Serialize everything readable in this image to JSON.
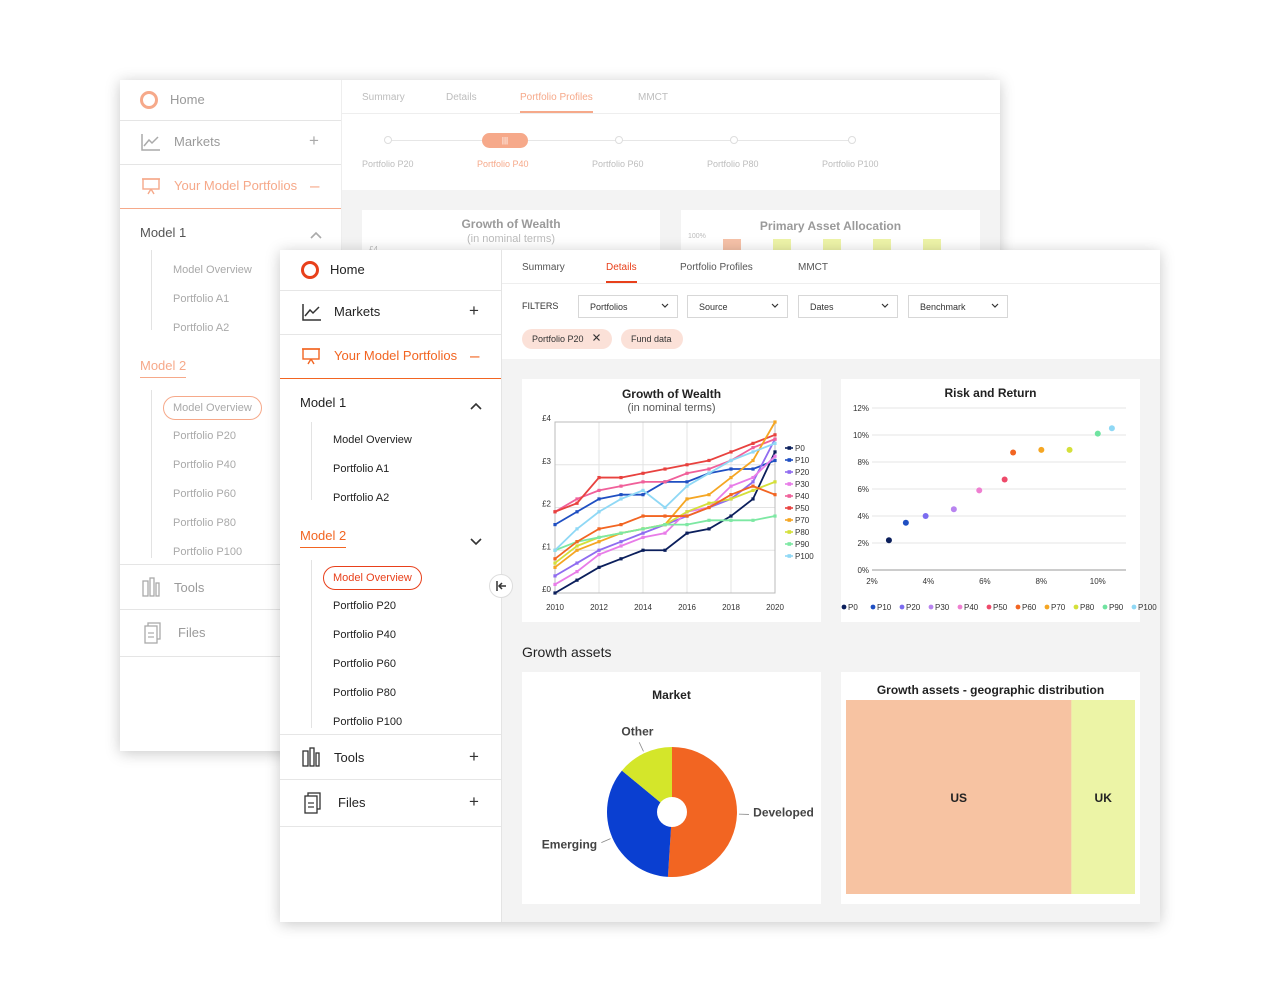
{
  "back": {
    "sidebar": {
      "home": "Home",
      "markets": "Markets",
      "your_model_portfolios": "Your Model Portfolios",
      "model1": "Model 1",
      "model1_items": [
        "Model Overview",
        "Portfolio A1",
        "Portfolio A2"
      ],
      "model2": "Model 2",
      "model2_items": [
        "Model Overview",
        "Portfolio P20",
        "Portfolio P40",
        "Portfolio P60",
        "Portfolio P80",
        "Portfolio P100"
      ],
      "tools": "Tools",
      "files": "Files"
    },
    "tabs": [
      "Summary",
      "Details",
      "Portfolio Profiles",
      "MMCT"
    ],
    "active_tab": "Portfolio Profiles",
    "steps": [
      "Portfolio P20",
      "Portfolio P40",
      "Portfolio P60",
      "Portfolio P80",
      "Portfolio P100"
    ],
    "active_step": "Portfolio P40",
    "card1_title": "Growth of Wealth",
    "card1_subtitle": "(in nominal terms)",
    "card1_partial_tick": "£4",
    "card2_title": "Primary Asset Allocation",
    "card2_partial_tick": "100%"
  },
  "front": {
    "sidebar": {
      "home": "Home",
      "markets": "Markets",
      "your_model_portfolios": "Your Model Portfolios",
      "model1": "Model 1",
      "model1_items": [
        "Model Overview",
        "Portfolio A1",
        "Portfolio A2"
      ],
      "model2": "Model 2",
      "model2_items": [
        "Model Overview",
        "Portfolio P20",
        "Portfolio P40",
        "Portfolio P60",
        "Portfolio P80",
        "Portfolio P100"
      ],
      "tools": "Tools",
      "files": "Files"
    },
    "tabs": [
      "Summary",
      "Details",
      "Portfolio Profiles",
      "MMCT"
    ],
    "active_tab": "Details",
    "filters_label": "FILTERS",
    "filters": [
      "Portfolios",
      "Source",
      "Dates",
      "Benchmark"
    ],
    "chips": [
      "Portfolio P20",
      "Fund data"
    ],
    "section_heading": "Growth assets"
  },
  "colors": {
    "accent": "#f26522",
    "accent_light": "#f6a98a",
    "chip_bg": "#fbe1d8"
  },
  "chart_data": [
    {
      "type": "line",
      "title": "Growth of Wealth",
      "subtitle": "(in nominal terms)",
      "x": [
        2010,
        2011,
        2012,
        2013,
        2014,
        2015,
        2016,
        2017,
        2018,
        2019,
        2020
      ],
      "xticks": [
        "2010",
        "2012",
        "2014",
        "2016",
        "2018",
        "2020"
      ],
      "yticks": [
        "£0",
        "£1",
        "£2",
        "£3",
        "£4"
      ],
      "ylim": [
        0,
        4
      ],
      "legend_position": "right",
      "series": [
        {
          "name": "P0",
          "color": "#0b1f5c",
          "values": [
            0.0,
            0.3,
            0.6,
            0.8,
            1.0,
            1.0,
            1.4,
            1.5,
            1.8,
            2.2,
            3.3
          ]
        },
        {
          "name": "P10",
          "color": "#1f4fc2",
          "values": [
            1.6,
            1.9,
            2.2,
            2.3,
            2.3,
            2.6,
            2.6,
            2.8,
            2.9,
            2.9,
            3.1
          ]
        },
        {
          "name": "P20",
          "color": "#8f6cf0",
          "values": [
            0.4,
            0.7,
            1.0,
            1.2,
            1.4,
            1.6,
            1.8,
            2.0,
            2.2,
            2.6,
            3.6
          ]
        },
        {
          "name": "P30",
          "color": "#e87ce8",
          "values": [
            0.2,
            0.5,
            0.9,
            1.1,
            1.3,
            1.4,
            1.9,
            2.0,
            2.5,
            2.7,
            3.2
          ]
        },
        {
          "name": "P40",
          "color": "#f0609a",
          "values": [
            1.9,
            2.2,
            2.4,
            2.5,
            2.6,
            2.6,
            2.8,
            2.9,
            3.1,
            3.4,
            3.6
          ]
        },
        {
          "name": "P50",
          "color": "#e8423f",
          "values": [
            1.9,
            2.1,
            2.7,
            2.7,
            2.8,
            2.9,
            3.0,
            3.1,
            3.3,
            3.5,
            3.7
          ]
        },
        {
          "name": "P70",
          "color": "#f5a623",
          "values": [
            0.6,
            1.0,
            1.2,
            1.4,
            1.5,
            1.6,
            2.2,
            2.3,
            2.7,
            3.1,
            4.0
          ]
        },
        {
          "name": "P80",
          "color": "#d4e03a",
          "values": [
            0.7,
            1.1,
            1.3,
            1.4,
            1.5,
            1.6,
            1.9,
            2.1,
            2.2,
            2.4,
            2.6
          ]
        },
        {
          "name": "P90",
          "color": "#7de8a3",
          "values": [
            1.0,
            1.2,
            1.3,
            1.4,
            1.5,
            1.6,
            1.6,
            1.7,
            1.7,
            1.7,
            1.8
          ]
        },
        {
          "name": "P100",
          "color": "#8fd8f5",
          "values": [
            1.0,
            1.5,
            1.9,
            2.2,
            2.4,
            2.0,
            2.5,
            2.8,
            3.1,
            3.3,
            3.5
          ]
        },
        {
          "name": "",
          "color": "#f26522",
          "values": [
            0.8,
            1.2,
            1.5,
            1.6,
            1.8,
            1.8,
            1.8,
            2.0,
            2.3,
            2.5,
            2.3
          ]
        }
      ]
    },
    {
      "type": "scatter",
      "title": "Risk and Return",
      "xticks": [
        "2%",
        "4%",
        "6%",
        "8%",
        "10%"
      ],
      "yticks": [
        "0%",
        "2%",
        "4%",
        "6%",
        "8%",
        "10%",
        "12%"
      ],
      "xlim": [
        2,
        11
      ],
      "ylim": [
        0,
        12
      ],
      "grid": "horizontal",
      "legend_position": "bottom",
      "legend": [
        "P0",
        "P10",
        "P20",
        "P30",
        "P40",
        "P50",
        "P60",
        "P70",
        "P80",
        "P90",
        "P100"
      ],
      "points": [
        {
          "name": "P0",
          "color": "#0b1f5c",
          "x": 2.6,
          "y": 2.2
        },
        {
          "name": "P10",
          "color": "#1f4fc2",
          "x": 3.2,
          "y": 3.5
        },
        {
          "name": "P20",
          "color": "#7b6cf0",
          "x": 3.9,
          "y": 4.0
        },
        {
          "name": "P30",
          "color": "#b884f0",
          "x": 4.9,
          "y": 4.5
        },
        {
          "name": "P40",
          "color": "#ef7fd1",
          "x": 5.8,
          "y": 5.9
        },
        {
          "name": "P50",
          "color": "#ee4a6a",
          "x": 6.7,
          "y": 6.7
        },
        {
          "name": "P60",
          "color": "#f26522",
          "x": 7.0,
          "y": 8.7
        },
        {
          "name": "P70",
          "color": "#f5a623",
          "x": 8.0,
          "y": 8.9
        },
        {
          "name": "P80",
          "color": "#d4e03a",
          "x": 9.0,
          "y": 8.9
        },
        {
          "name": "P90",
          "color": "#6fe3a0",
          "x": 10.0,
          "y": 10.1
        },
        {
          "name": "P100",
          "color": "#8fd8f5",
          "x": 10.5,
          "y": 10.5
        }
      ]
    },
    {
      "type": "pie",
      "title": "Market",
      "slices": [
        {
          "label": "Developed",
          "value": 51,
          "color": "#f26522"
        },
        {
          "label": "Emerging",
          "value": 35,
          "color": "#0a3fd1"
        },
        {
          "label": "Other",
          "value": 14,
          "color": "#d4e62a"
        }
      ]
    },
    {
      "type": "heatmap",
      "title": "Growth assets - geographic distribution",
      "cells": [
        {
          "label": "US",
          "value": 78,
          "color": "#f7c3a2"
        },
        {
          "label": "UK",
          "value": 22,
          "color": "#ecf4a6"
        }
      ]
    }
  ]
}
